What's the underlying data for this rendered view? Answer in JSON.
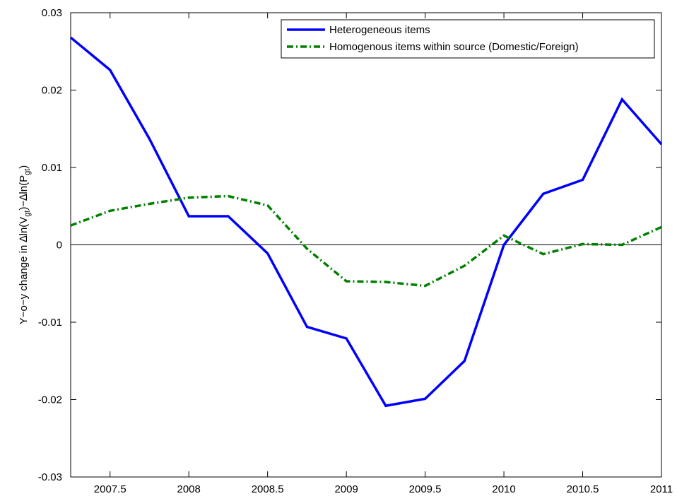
{
  "chart_data": {
    "type": "line",
    "ylabel_parts": [
      "Y−o−y change in ∆ln(V",
      "gt",
      ")−∆ln(P",
      "gt",
      ")"
    ],
    "x": [
      2007.25,
      2007.5,
      2007.75,
      2008,
      2008.25,
      2008.5,
      2008.75,
      2009,
      2009.25,
      2009.5,
      2009.75,
      2010,
      2010.25,
      2010.5,
      2010.75,
      2011
    ],
    "series": [
      {
        "name": "Heterogeneous items",
        "color": "#0000ff",
        "style": "solid",
        "values": [
          0.0268,
          0.0226,
          0.0137,
          0.0037,
          0.0037,
          -0.0011,
          -0.0106,
          -0.0121,
          -0.0208,
          -0.0199,
          -0.015,
          0.0,
          0.0066,
          0.0084,
          0.0188,
          0.013
        ]
      },
      {
        "name": "Homogenous items within source (Domestic/Foreign)",
        "color": "#007f00",
        "style": "dashdot",
        "values": [
          0.0025,
          0.0044,
          0.0053,
          0.0061,
          0.0063,
          0.0051,
          -0.0005,
          -0.0047,
          -0.0048,
          -0.0053,
          -0.0027,
          0.0012,
          -0.0012,
          0.0001,
          0.0,
          0.0023
        ]
      }
    ],
    "xlim": [
      2007.25,
      2011
    ],
    "xticks": [
      2007.5,
      2008,
      2008.5,
      2009,
      2009.5,
      2010,
      2010.5,
      2011
    ],
    "ylim": [
      -0.03,
      0.03
    ],
    "yticks": [
      -0.03,
      -0.02,
      -0.01,
      0,
      0.01,
      0.02,
      0.03
    ],
    "hlines": [
      0
    ],
    "legend": "upper-right",
    "grid": false
  }
}
